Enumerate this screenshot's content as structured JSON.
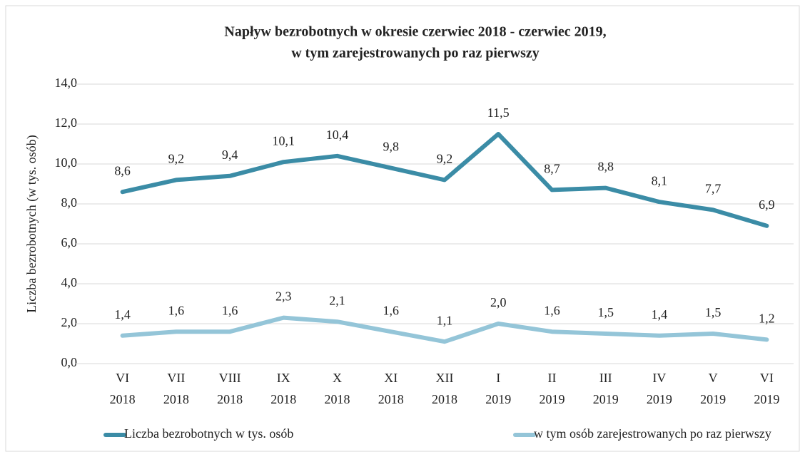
{
  "chart_data": {
    "type": "line",
    "title": [
      "Napływ  bezrobotnych w okresie czerwiec 2018 - czerwiec 2019,",
      "w tym zarejestrowanych po raz pierwszy"
    ],
    "y_label": "Liczba bezrobotnych (w tys. osób)",
    "categories": [
      [
        "VI",
        "2018"
      ],
      [
        "VII",
        "2018"
      ],
      [
        "VIII",
        "2018"
      ],
      [
        "IX",
        "2018"
      ],
      [
        "X",
        "2018"
      ],
      [
        "XI",
        "2018"
      ],
      [
        "XII",
        "2018"
      ],
      [
        "I",
        "2019"
      ],
      [
        "II",
        "2019"
      ],
      [
        "III",
        "2019"
      ],
      [
        "IV",
        "2019"
      ],
      [
        "V",
        "2019"
      ],
      [
        "VI",
        "2019"
      ]
    ],
    "series": [
      {
        "name": "Liczba bezrobotnych w tys. osób",
        "color": "#3b8ca6",
        "values": [
          8.6,
          9.2,
          9.4,
          10.1,
          10.4,
          9.8,
          9.2,
          11.5,
          8.7,
          8.8,
          8.1,
          7.7,
          6.9
        ],
        "value_labels": [
          "8,6",
          "9,2",
          "9,4",
          "10,1",
          "10,4",
          "9,8",
          "9,2",
          "11,5",
          "8,7",
          "8,8",
          "8,1",
          "7,7",
          "6,9"
        ]
      },
      {
        "name": "w tym osób zarejestrowanych po raz pierwszy",
        "color": "#94c5d8",
        "values": [
          1.4,
          1.6,
          1.6,
          2.3,
          2.1,
          1.6,
          1.1,
          2.0,
          1.6,
          1.5,
          1.4,
          1.5,
          1.2
        ],
        "value_labels": [
          "1,4",
          "1,6",
          "1,6",
          "2,3",
          "2,1",
          "1,6",
          "1,1",
          "2,0",
          "1,6",
          "1,5",
          "1,4",
          "1,5",
          "1,2"
        ]
      }
    ],
    "ylim": [
      0,
      14
    ],
    "yticks": [
      {
        "value": 0,
        "label": "0,0"
      },
      {
        "value": 2,
        "label": "2,0"
      },
      {
        "value": 4,
        "label": "4,0"
      },
      {
        "value": 6,
        "label": "6,0"
      },
      {
        "value": 8,
        "label": "8,0"
      },
      {
        "value": 10,
        "label": "10,0"
      },
      {
        "value": 12,
        "label": "12,0"
      },
      {
        "value": 14,
        "label": "14,0"
      }
    ],
    "grid": true,
    "legend": "bottom"
  }
}
